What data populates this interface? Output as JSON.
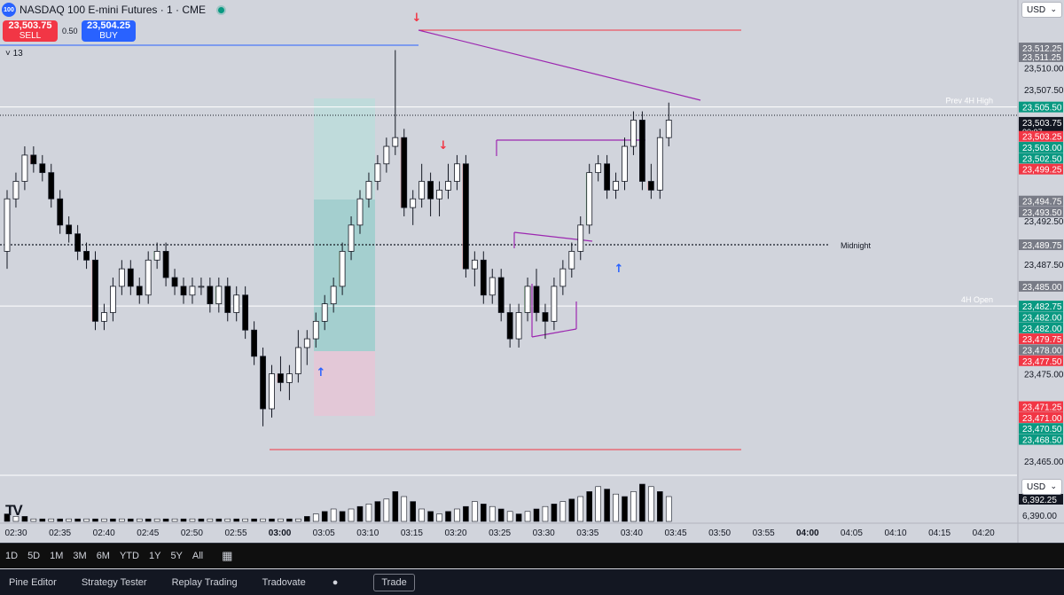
{
  "header": {
    "title": "NASDAQ 100 E-mini Futures · 1 · CME",
    "logo_text": "100",
    "indicator_toggle": "˅ 13",
    "currency": "USD"
  },
  "trade": {
    "sell_price": "23,503.75",
    "sell_label": "SELL",
    "spread": "0.50",
    "buy_price": "23,504.25",
    "buy_label": "BUY"
  },
  "chart_data": {
    "type": "candlestick",
    "symbol": "NASDAQ 100 E-mini Futures",
    "interval": "1",
    "exchange": "CME",
    "ylim": [
      23463.5,
      23515.5
    ],
    "x_ticks": [
      "02:30",
      "02:35",
      "02:40",
      "02:45",
      "02:50",
      "02:55",
      "03:00",
      "03:05",
      "03:10",
      "03:15",
      "03:20",
      "03:25",
      "03:30",
      "03:35",
      "03:40",
      "03:45",
      "03:50",
      "03:55",
      "04:00",
      "04:05",
      "04:10",
      "04:15",
      "04:20"
    ],
    "y_ticks": [
      "23,510.00",
      "23,507.50",
      "23,492.50",
      "23,487.50",
      "23,475.00",
      "23,465.00"
    ],
    "price_labels": [
      {
        "text": "23,512.25",
        "v": 23512.25,
        "color": "#787b86"
      },
      {
        "text": "23,511.25",
        "v": 23511.25,
        "color": "#787b86"
      },
      {
        "text": "23,505.50",
        "v": 23505.5,
        "color": "#089981"
      },
      {
        "text": "23,503.75",
        "v": 23503.75,
        "color": "#131722",
        "sub": "00:07"
      },
      {
        "text": "23,503.25",
        "v": 23502.15,
        "color": "#f23645"
      },
      {
        "text": "23,503.00",
        "v": 23500.9,
        "color": "#089981"
      },
      {
        "text": "23,502.50",
        "v": 23499.65,
        "color": "#089981"
      },
      {
        "text": "23,499.25",
        "v": 23498.4,
        "color": "#f23645"
      },
      {
        "text": "23,494.75",
        "v": 23494.75,
        "color": "#787b86"
      },
      {
        "text": "23,493.50",
        "v": 23493.5,
        "color": "#787b86"
      },
      {
        "text": "23,489.75",
        "v": 23489.75,
        "color": "#787b86"
      },
      {
        "text": "23,485.00",
        "v": 23485.0,
        "color": "#787b86"
      },
      {
        "text": "23,482.75",
        "v": 23482.75,
        "color": "#089981"
      },
      {
        "text": "23,482.00",
        "v": 23481.5,
        "color": "#089981"
      },
      {
        "text": "23,482.00",
        "v": 23480.25,
        "color": "#089981"
      },
      {
        "text": "23,479.75",
        "v": 23479.0,
        "color": "#f23645"
      },
      {
        "text": "23,478.00",
        "v": 23477.75,
        "color": "#787b86"
      },
      {
        "text": "23,477.50",
        "v": 23476.5,
        "color": "#f23645"
      },
      {
        "text": "23,471.25",
        "v": 23471.25,
        "color": "#f23645"
      },
      {
        "text": "23,471.00",
        "v": 23470.0,
        "color": "#f23645"
      },
      {
        "text": "23,470.50",
        "v": 23468.75,
        "color": "#089981"
      },
      {
        "text": "23,468.50",
        "v": 23467.5,
        "color": "#089981"
      }
    ],
    "level_lines": [
      {
        "label": "Prev 4H High",
        "v": 23505.5,
        "style": "solid",
        "color": "#ffffff"
      },
      {
        "label": "Midnight",
        "v": 23489.75,
        "style": "dotted",
        "color": "#131722"
      },
      {
        "label": "4H Open",
        "v": 23482.75,
        "style": "solid",
        "color": "#ffffff"
      }
    ],
    "volume_labels": [
      "6,392.25",
      "6,390.00"
    ],
    "candles": [
      [
        23489,
        23496,
        23487,
        23495
      ],
      [
        23495,
        23498,
        23494,
        23497
      ],
      [
        23497,
        23501,
        23496,
        23500
      ],
      [
        23500,
        23501,
        23498,
        23499
      ],
      [
        23499,
        23500,
        23497,
        23498
      ],
      [
        23498,
        23499,
        23494,
        23495
      ],
      [
        23495,
        23496,
        23491,
        23492
      ],
      [
        23492,
        23493,
        23490,
        23491
      ],
      [
        23491,
        23492,
        23488,
        23489
      ],
      [
        23489,
        23490,
        23487,
        23488
      ],
      [
        23488,
        23489,
        23480,
        23481
      ],
      [
        23481,
        23483,
        23480,
        23482
      ],
      [
        23482,
        23486,
        23481,
        23485
      ],
      [
        23485,
        23488,
        23484,
        23487
      ],
      [
        23487,
        23488,
        23484,
        23485
      ],
      [
        23485,
        23486,
        23483,
        23484
      ],
      [
        23484,
        23489,
        23483,
        23488
      ],
      [
        23488,
        23490,
        23487,
        23489
      ],
      [
        23489,
        23490,
        23485,
        23486
      ],
      [
        23486,
        23487,
        23484,
        23485
      ],
      [
        23485,
        23486,
        23483,
        23484
      ],
      [
        23484,
        23486,
        23483,
        23485
      ],
      [
        23485,
        23486,
        23484,
        23485
      ],
      [
        23485,
        23486,
        23482,
        23483
      ],
      [
        23483,
        23486,
        23482,
        23485
      ],
      [
        23485,
        23486,
        23481,
        23482
      ],
      [
        23482,
        23485,
        23481,
        23484
      ],
      [
        23484,
        23485,
        23479,
        23480
      ],
      [
        23480,
        23481,
        23476,
        23477
      ],
      [
        23477,
        23478,
        23469,
        23471
      ],
      [
        23471,
        23476,
        23470,
        23475
      ],
      [
        23475,
        23477,
        23473,
        23474
      ],
      [
        23474,
        23476,
        23472,
        23475
      ],
      [
        23475,
        23480,
        23474,
        23478
      ],
      [
        23478,
        23480,
        23476,
        23479
      ],
      [
        23479,
        23482,
        23478,
        23481
      ],
      [
        23481,
        23484,
        23480,
        23483
      ],
      [
        23483,
        23486,
        23482,
        23485
      ],
      [
        23485,
        23490,
        23484,
        23489
      ],
      [
        23489,
        23493,
        23488,
        23492
      ],
      [
        23492,
        23496,
        23491,
        23495
      ],
      [
        23495,
        23498,
        23494,
        23497
      ],
      [
        23497,
        23500,
        23496,
        23499
      ],
      [
        23499,
        23502,
        23498,
        23501
      ],
      [
        23501,
        23512,
        23500,
        23502
      ],
      [
        23502,
        23503,
        23493,
        23494
      ],
      [
        23494,
        23496,
        23492,
        23495
      ],
      [
        23495,
        23499,
        23494,
        23497
      ],
      [
        23497,
        23498,
        23493,
        23495
      ],
      [
        23495,
        23497,
        23493,
        23496
      ],
      [
        23496,
        23499,
        23495,
        23497
      ],
      [
        23497,
        23500,
        23496,
        23499
      ],
      [
        23499,
        23500,
        23486,
        23487
      ],
      [
        23487,
        23489,
        23485,
        23488
      ],
      [
        23488,
        23489,
        23483,
        23484
      ],
      [
        23484,
        23487,
        23483,
        23486
      ],
      [
        23486,
        23487,
        23481,
        23482
      ],
      [
        23482,
        23483,
        23478,
        23479
      ],
      [
        23479,
        23483,
        23478,
        23482
      ],
      [
        23482,
        23486,
        23481,
        23485
      ],
      [
        23485,
        23487,
        23481,
        23482
      ],
      [
        23482,
        23483,
        23479,
        23481
      ],
      [
        23481,
        23486,
        23480,
        23485
      ],
      [
        23485,
        23488,
        23484,
        23487
      ],
      [
        23487,
        23490,
        23486,
        23489
      ],
      [
        23489,
        23493,
        23488,
        23492
      ],
      [
        23492,
        23499,
        23491,
        23498
      ],
      [
        23498,
        23500,
        23497,
        23499
      ],
      [
        23499,
        23500,
        23495,
        23496
      ],
      [
        23496,
        23498,
        23495,
        23497
      ],
      [
        23497,
        23502,
        23496,
        23501
      ],
      [
        23501,
        23505,
        23500,
        23504
      ],
      [
        23504,
        23505,
        23496,
        23497
      ],
      [
        23497,
        23499,
        23495,
        23496
      ],
      [
        23496,
        23503,
        23495,
        23502
      ],
      [
        23502,
        23506,
        23501,
        23504
      ]
    ],
    "volume": [
      3,
      2,
      2,
      1,
      1,
      1,
      1,
      1,
      1,
      1,
      1,
      1,
      1,
      1,
      1,
      1,
      1,
      1,
      1,
      1,
      1,
      1,
      1,
      1,
      1,
      1,
      1,
      1,
      1,
      1,
      1,
      1,
      1,
      1,
      2,
      3,
      4,
      5,
      4,
      5,
      6,
      7,
      8,
      9,
      12,
      10,
      8,
      5,
      4,
      3,
      4,
      5,
      6,
      8,
      7,
      6,
      5,
      4,
      3,
      4,
      5,
      6,
      7,
      8,
      9,
      10,
      12,
      14,
      13,
      11,
      10,
      12,
      15,
      14,
      12,
      10
    ]
  },
  "x_labels": [
    "02:30",
    "02:35",
    "02:40",
    "02:45",
    "02:50",
    "02:55",
    "03:00",
    "03:05",
    "03:10",
    "03:15",
    "03:20",
    "03:25",
    "03:30",
    "03:35",
    "03:40",
    "03:45",
    "03:50",
    "03:55",
    "04:00",
    "04:05",
    "04:10",
    "04:15",
    "04:20"
  ],
  "range_bar": [
    "1D",
    "5D",
    "1M",
    "3M",
    "6M",
    "YTD",
    "1Y",
    "5Y",
    "All"
  ],
  "bottom_bar": {
    "pine_editor": "Pine Editor",
    "strategy_tester": "Strategy Tester",
    "replay_trading": "Replay Trading",
    "tradovate": "Tradovate",
    "trade": "Trade"
  },
  "colors": {
    "up": "#ffffff",
    "down": "#000000",
    "accent": "#2962ff",
    "sell": "#f23645",
    "green": "#089981"
  }
}
